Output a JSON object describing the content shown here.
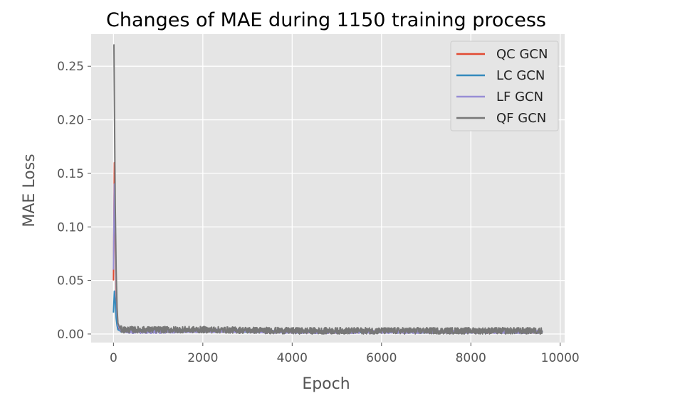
{
  "chart_data": {
    "type": "line",
    "title": "Changes of MAE during 1150 training process",
    "xlabel": "Epoch",
    "ylabel": "MAE Loss",
    "xlim": [
      -500,
      10100
    ],
    "ylim": [
      -0.008,
      0.28
    ],
    "xticks": [
      0,
      2000,
      4000,
      6000,
      8000,
      10000
    ],
    "yticks": [
      0.0,
      0.05,
      0.1,
      0.15,
      0.2,
      0.25
    ],
    "xtick_labels": [
      "0",
      "2000",
      "4000",
      "6000",
      "8000",
      "10000"
    ],
    "ytick_labels": [
      "0.00",
      "0.05",
      "0.10",
      "0.15",
      "0.20",
      "0.25"
    ],
    "grid": true,
    "legend_position": "top-right",
    "series": [
      {
        "name": "QC GCN",
        "color": "#e24a33",
        "x": [
          0,
          20,
          40,
          60,
          80,
          100,
          150,
          200,
          400,
          1000,
          2000,
          4000,
          6000,
          8000,
          9600
        ],
        "y": [
          0.05,
          0.16,
          0.09,
          0.04,
          0.015,
          0.006,
          0.004,
          0.003,
          0.003,
          0.003,
          0.003,
          0.002,
          0.002,
          0.002,
          0.002
        ],
        "noise": 0.001
      },
      {
        "name": "LC GCN",
        "color": "#348abd",
        "x": [
          0,
          20,
          40,
          60,
          80,
          100,
          150,
          200,
          400,
          1000,
          2000,
          4000,
          6000,
          8000,
          9600
        ],
        "y": [
          0.02,
          0.04,
          0.03,
          0.015,
          0.008,
          0.004,
          0.003,
          0.003,
          0.003,
          0.003,
          0.003,
          0.002,
          0.002,
          0.002,
          0.002
        ],
        "noise": 0.001
      },
      {
        "name": "LF GCN",
        "color": "#988ed5",
        "x": [
          0,
          20,
          40,
          60,
          80,
          100,
          150,
          200,
          400,
          1000,
          2000,
          4000,
          6000,
          8000,
          9600
        ],
        "y": [
          0.06,
          0.14,
          0.1,
          0.05,
          0.02,
          0.008,
          0.004,
          0.003,
          0.002,
          0.002,
          0.003,
          0.002,
          0.002,
          0.002,
          0.002
        ],
        "noise": 0.0015
      },
      {
        "name": "QF GCN",
        "color": "#777777",
        "x": [
          0,
          10,
          20,
          40,
          60,
          80,
          100,
          150,
          200,
          400,
          1000,
          2000,
          4000,
          6000,
          8000,
          9600
        ],
        "y": [
          0.27,
          0.27,
          0.22,
          0.12,
          0.06,
          0.025,
          0.01,
          0.005,
          0.004,
          0.004,
          0.004,
          0.004,
          0.003,
          0.003,
          0.003,
          0.003
        ],
        "noise": 0.003
      }
    ]
  }
}
